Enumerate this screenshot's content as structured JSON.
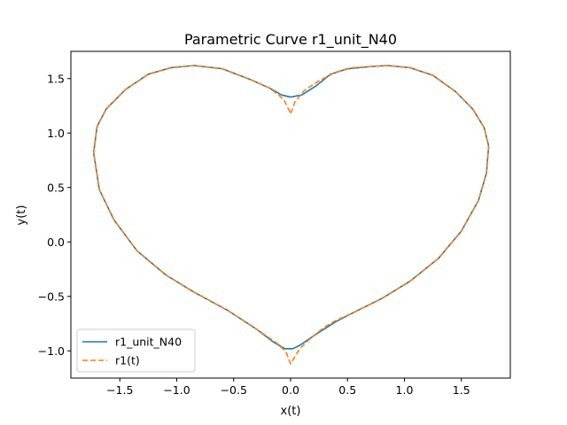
{
  "chart_data": {
    "type": "line",
    "title": "Parametric Curve r1_unit_N40",
    "xlabel": "x(t)",
    "ylabel": "y(t)",
    "xlim": [
      -1.93,
      1.93
    ],
    "ylim": [
      -1.25,
      1.75
    ],
    "xticks": [
      -1.5,
      -1.0,
      -0.5,
      0.0,
      0.5,
      1.0,
      1.5
    ],
    "xtick_labels": [
      "−1.5",
      "−1.0",
      "−0.5",
      "0.0",
      "0.5",
      "1.0",
      "1.5"
    ],
    "yticks": [
      -1.0,
      -0.5,
      0.0,
      0.5,
      1.0,
      1.5
    ],
    "ytick_labels": [
      "−1.0",
      "−0.5",
      "0.0",
      "0.5",
      "1.0",
      "1.5"
    ],
    "grid": false,
    "legend_position": "lower-left",
    "series": [
      {
        "name": "r1_unit_N40",
        "color": "#1f77b4",
        "style": "solid",
        "x": [
          0.0,
          0.1,
          0.22,
          0.35,
          0.5,
          0.7,
          0.85,
          1.05,
          1.25,
          1.45,
          1.6,
          1.7,
          1.74,
          1.72,
          1.65,
          1.5,
          1.3,
          1.05,
          0.8,
          0.55,
          0.4,
          0.25,
          0.15,
          0.08,
          0.02,
          -0.05,
          -0.15,
          -0.3,
          -0.55,
          -0.85,
          -1.1,
          -1.35,
          -1.55,
          -1.68,
          -1.73,
          -1.7,
          -1.62,
          -1.45,
          -1.25,
          -1.05,
          -0.85,
          -0.6,
          -0.35,
          -0.18,
          -0.08,
          0.0
        ],
        "y": [
          1.33,
          1.35,
          1.43,
          1.54,
          1.59,
          1.61,
          1.62,
          1.6,
          1.53,
          1.38,
          1.22,
          1.05,
          0.88,
          0.63,
          0.38,
          0.1,
          -0.15,
          -0.36,
          -0.52,
          -0.65,
          -0.73,
          -0.83,
          -0.9,
          -0.95,
          -0.98,
          -0.98,
          -0.92,
          -0.8,
          -0.63,
          -0.46,
          -0.3,
          -0.08,
          0.2,
          0.48,
          0.82,
          1.06,
          1.22,
          1.4,
          1.54,
          1.6,
          1.62,
          1.59,
          1.49,
          1.41,
          1.35,
          1.33
        ]
      },
      {
        "name": "r1(t)",
        "color": "#ff7f0e",
        "style": "dashed",
        "x": [
          0.0,
          0.04,
          0.12,
          0.25,
          0.4,
          0.55,
          0.7,
          0.85,
          1.05,
          1.25,
          1.45,
          1.6,
          1.7,
          1.74,
          1.72,
          1.65,
          1.5,
          1.3,
          1.05,
          0.8,
          0.55,
          0.4,
          0.3,
          0.18,
          0.08,
          0.0,
          -0.04,
          -0.12,
          -0.3,
          -0.55,
          -0.85,
          -1.1,
          -1.35,
          -1.55,
          -1.68,
          -1.73,
          -1.7,
          -1.62,
          -1.45,
          -1.25,
          -1.05,
          -0.85,
          -0.6,
          -0.35,
          -0.18,
          -0.06,
          0.0
        ],
        "y": [
          1.18,
          1.29,
          1.39,
          1.48,
          1.56,
          1.6,
          1.61,
          1.62,
          1.6,
          1.53,
          1.38,
          1.22,
          1.05,
          0.88,
          0.63,
          0.38,
          0.1,
          -0.15,
          -0.36,
          -0.52,
          -0.65,
          -0.72,
          -0.78,
          -0.88,
          -0.98,
          -1.12,
          -1.01,
          -0.93,
          -0.8,
          -0.63,
          -0.46,
          -0.3,
          -0.08,
          0.2,
          0.48,
          0.82,
          1.06,
          1.22,
          1.4,
          1.54,
          1.6,
          1.62,
          1.59,
          1.49,
          1.41,
          1.31,
          1.18
        ]
      }
    ]
  }
}
